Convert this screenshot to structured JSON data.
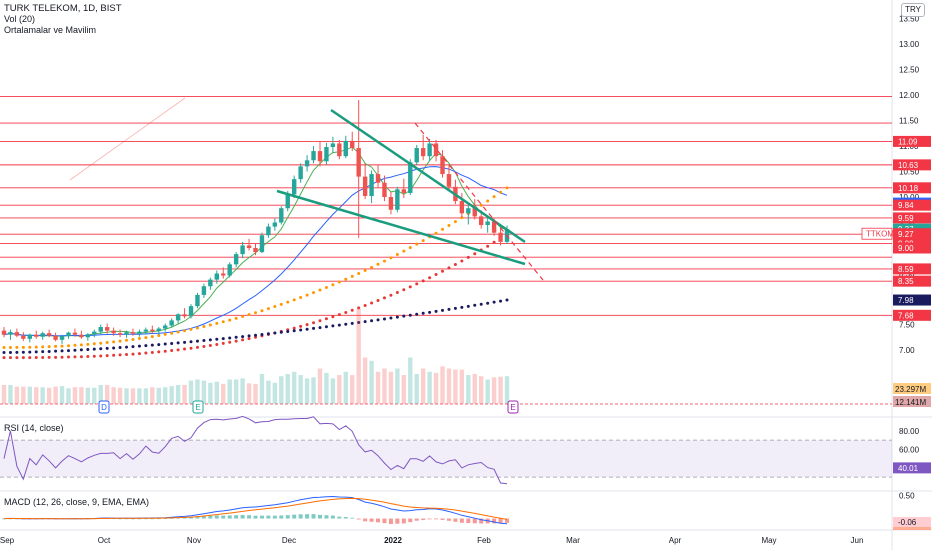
{
  "header": {
    "symbol_line": "TURK TELEKOM, 1D, BIST",
    "vol_label": "Vol (20)",
    "indicator_label": "Ortalamalar ve Mavilim",
    "currency": "TRY"
  },
  "rsi_label": "RSI (14, close)",
  "macd_label": "MACD (12, 26, close, 9, EMA, EMA)",
  "colors": {
    "up": "#26a69a",
    "down": "#ef5350",
    "hline": "#f23645",
    "ma_green": "#4caf50",
    "ma_blue": "#2962ff",
    "ma_orange": "#ff9800",
    "ma_red": "#e53935",
    "ma_navy": "#1a1a5e",
    "trend": "#1a9c7e",
    "rsi": "#7e57c2",
    "macd_line": "#2962ff",
    "signal_line": "#ff6d00"
  },
  "chart_data": [
    {
      "type": "candlestick",
      "title": "TURK TELEKOM, 1D, BIST",
      "ylim": [
        6.6,
        13.55
      ],
      "x_ticks": [
        "Sep",
        "Oct",
        "Nov",
        "Dec",
        "2022",
        "Feb",
        "Mar",
        "Apr",
        "May",
        "Jun"
      ],
      "y_ticks": [
        "13.50",
        "13.00",
        "12.50",
        "12.00",
        "11.50",
        "11.00",
        "10.50",
        "10.00",
        "9.50",
        "9.00",
        "8.50",
        "8.00",
        "7.50",
        "7.00"
      ],
      "horizontal_levels": [
        11.97,
        11.45,
        11.09,
        10.63,
        10.18,
        9.84,
        9.59,
        9.27,
        9.09,
        8.82,
        8.59,
        8.35,
        7.68
      ],
      "price_tags": [
        {
          "label": "11.09",
          "value": 11.09,
          "color": "#f23645"
        },
        {
          "label": "10.63",
          "value": 10.63,
          "color": "#f23645"
        },
        {
          "label": "10.18",
          "value": 10.18,
          "color": "#f23645"
        },
        {
          "label": "9.88",
          "value": 9.88,
          "color": "#2962ff"
        },
        {
          "label": "9.84",
          "value": 9.84,
          "color": "#f23645"
        },
        {
          "label": "9.59",
          "value": 9.59,
          "color": "#f23645"
        },
        {
          "label": "9.37",
          "value": 9.37,
          "color": "#26a69a"
        },
        {
          "label": "9.28",
          "value": 9.28,
          "color": "#f23645"
        },
        {
          "label": "9.27",
          "value": 9.27,
          "color": "#f23645"
        },
        {
          "label": "9.09",
          "value": 9.09,
          "color": "#f23645"
        },
        {
          "label": "9.00",
          "value": 9.0,
          "color": "#f23645"
        },
        {
          "label": "8.59",
          "value": 8.59,
          "color": "#f23645"
        },
        {
          "label": "8.35",
          "value": 8.35,
          "color": "#f23645"
        },
        {
          "label": "7.98",
          "value": 7.98,
          "color": "#1a1a5e"
        },
        {
          "label": "7.68",
          "value": 7.68,
          "color": "#f23645"
        }
      ],
      "symbol_tag": "TTKOM",
      "volume_tags": [
        "23.297M",
        "12.141M"
      ],
      "events": [
        "D",
        "E",
        "E"
      ],
      "candles": [
        [
          7.38,
          7.45,
          7.25,
          7.3
        ],
        [
          7.3,
          7.4,
          7.2,
          7.35
        ],
        [
          7.35,
          7.42,
          7.25,
          7.28
        ],
        [
          7.28,
          7.35,
          7.18,
          7.22
        ],
        [
          7.22,
          7.32,
          7.15,
          7.3
        ],
        [
          7.3,
          7.38,
          7.22,
          7.26
        ],
        [
          7.26,
          7.36,
          7.2,
          7.33
        ],
        [
          7.33,
          7.4,
          7.25,
          7.28
        ],
        [
          7.28,
          7.34,
          7.17,
          7.2
        ],
        [
          7.2,
          7.3,
          7.12,
          7.27
        ],
        [
          7.27,
          7.36,
          7.22,
          7.34
        ],
        [
          7.34,
          7.42,
          7.26,
          7.3
        ],
        [
          7.3,
          7.38,
          7.22,
          7.25
        ],
        [
          7.25,
          7.33,
          7.18,
          7.31
        ],
        [
          7.31,
          7.4,
          7.25,
          7.36
        ],
        [
          7.36,
          7.5,
          7.3,
          7.45
        ],
        [
          7.45,
          7.52,
          7.32,
          7.38
        ],
        [
          7.38,
          7.44,
          7.28,
          7.33
        ],
        [
          7.33,
          7.4,
          7.25,
          7.3
        ],
        [
          7.3,
          7.38,
          7.24,
          7.35
        ],
        [
          7.35,
          7.42,
          7.28,
          7.32
        ],
        [
          7.32,
          7.4,
          7.26,
          7.36
        ],
        [
          7.36,
          7.44,
          7.3,
          7.4
        ],
        [
          7.4,
          7.48,
          7.32,
          7.37
        ],
        [
          7.37,
          7.45,
          7.3,
          7.42
        ],
        [
          7.42,
          7.52,
          7.36,
          7.48
        ],
        [
          7.48,
          7.62,
          7.44,
          7.58
        ],
        [
          7.58,
          7.72,
          7.52,
          7.7
        ],
        [
          7.7,
          7.82,
          7.62,
          7.66
        ],
        [
          7.66,
          7.9,
          7.62,
          7.86
        ],
        [
          7.86,
          8.12,
          7.82,
          8.08
        ],
        [
          8.08,
          8.3,
          8.02,
          8.25
        ],
        [
          8.25,
          8.42,
          8.18,
          8.38
        ],
        [
          8.38,
          8.56,
          8.3,
          8.5
        ],
        [
          8.5,
          8.62,
          8.4,
          8.46
        ],
        [
          8.46,
          8.72,
          8.42,
          8.68
        ],
        [
          8.68,
          8.92,
          8.62,
          8.88
        ],
        [
          8.88,
          9.12,
          8.8,
          9.05
        ],
        [
          9.05,
          9.18,
          8.95,
          9.0
        ],
        [
          9.0,
          9.08,
          8.86,
          8.92
        ],
        [
          8.92,
          9.3,
          8.9,
          9.25
        ],
        [
          9.25,
          9.48,
          9.2,
          9.42
        ],
        [
          9.42,
          9.58,
          9.34,
          9.5
        ],
        [
          9.5,
          9.82,
          9.46,
          9.78
        ],
        [
          9.78,
          10.12,
          9.72,
          10.05
        ],
        [
          10.05,
          10.42,
          9.98,
          10.35
        ],
        [
          10.35,
          10.66,
          10.28,
          10.6
        ],
        [
          10.6,
          10.82,
          10.5,
          10.72
        ],
        [
          10.72,
          11.0,
          10.66,
          10.9
        ],
        [
          10.9,
          11.1,
          10.6,
          10.7
        ],
        [
          10.7,
          11.06,
          10.64,
          10.98
        ],
        [
          10.98,
          11.18,
          10.86,
          11.05
        ],
        [
          11.05,
          11.12,
          10.74,
          10.8
        ],
        [
          10.8,
          11.2,
          10.76,
          11.1
        ],
        [
          11.1,
          11.28,
          10.9,
          10.96
        ],
        [
          10.96,
          11.9,
          9.2,
          10.4
        ],
        [
          10.4,
          10.66,
          9.96,
          10.02
        ],
        [
          10.02,
          10.52,
          9.88,
          10.45
        ],
        [
          10.45,
          10.62,
          10.18,
          10.28
        ],
        [
          10.28,
          10.42,
          9.92,
          10.0
        ],
        [
          10.0,
          10.1,
          9.66,
          9.75
        ],
        [
          9.75,
          10.2,
          9.7,
          10.15
        ],
        [
          10.15,
          10.36,
          9.98,
          10.08
        ],
        [
          10.08,
          10.74,
          10.04,
          10.68
        ],
        [
          10.68,
          11.02,
          10.62,
          10.96
        ],
        [
          10.96,
          11.22,
          10.72,
          10.8
        ],
        [
          10.8,
          11.14,
          10.7,
          11.05
        ],
        [
          11.05,
          11.12,
          10.7,
          10.8
        ],
        [
          10.8,
          10.92,
          10.38,
          10.45
        ],
        [
          10.45,
          10.62,
          10.12,
          10.2
        ],
        [
          10.2,
          10.34,
          9.86,
          9.92
        ],
        [
          9.92,
          10.08,
          9.6,
          9.68
        ],
        [
          9.68,
          9.84,
          9.46,
          9.78
        ],
        [
          9.78,
          9.96,
          9.56,
          9.62
        ],
        [
          9.62,
          9.74,
          9.38,
          9.45
        ],
        [
          9.45,
          9.6,
          9.3,
          9.52
        ],
        [
          9.52,
          9.58,
          9.24,
          9.3
        ],
        [
          9.3,
          9.4,
          9.05,
          9.12
        ],
        [
          9.12,
          9.44,
          9.08,
          9.37
        ]
      ]
    },
    {
      "type": "line",
      "title": "RSI (14, close)",
      "ylim": [
        15,
        95
      ],
      "y_ticks": [
        "80.00",
        "60.00",
        "40.01"
      ],
      "bands": [
        70,
        30
      ],
      "last_value": "40.01"
    },
    {
      "type": "bar",
      "title": "MACD (12, 26, close, 9, EMA, EMA)",
      "ylim": [
        -0.25,
        0.6
      ],
      "y_ticks": [
        "0.50",
        "-0.06",
        "-0.18"
      ],
      "last_values": [
        "-0.06",
        "-0.18"
      ]
    }
  ]
}
